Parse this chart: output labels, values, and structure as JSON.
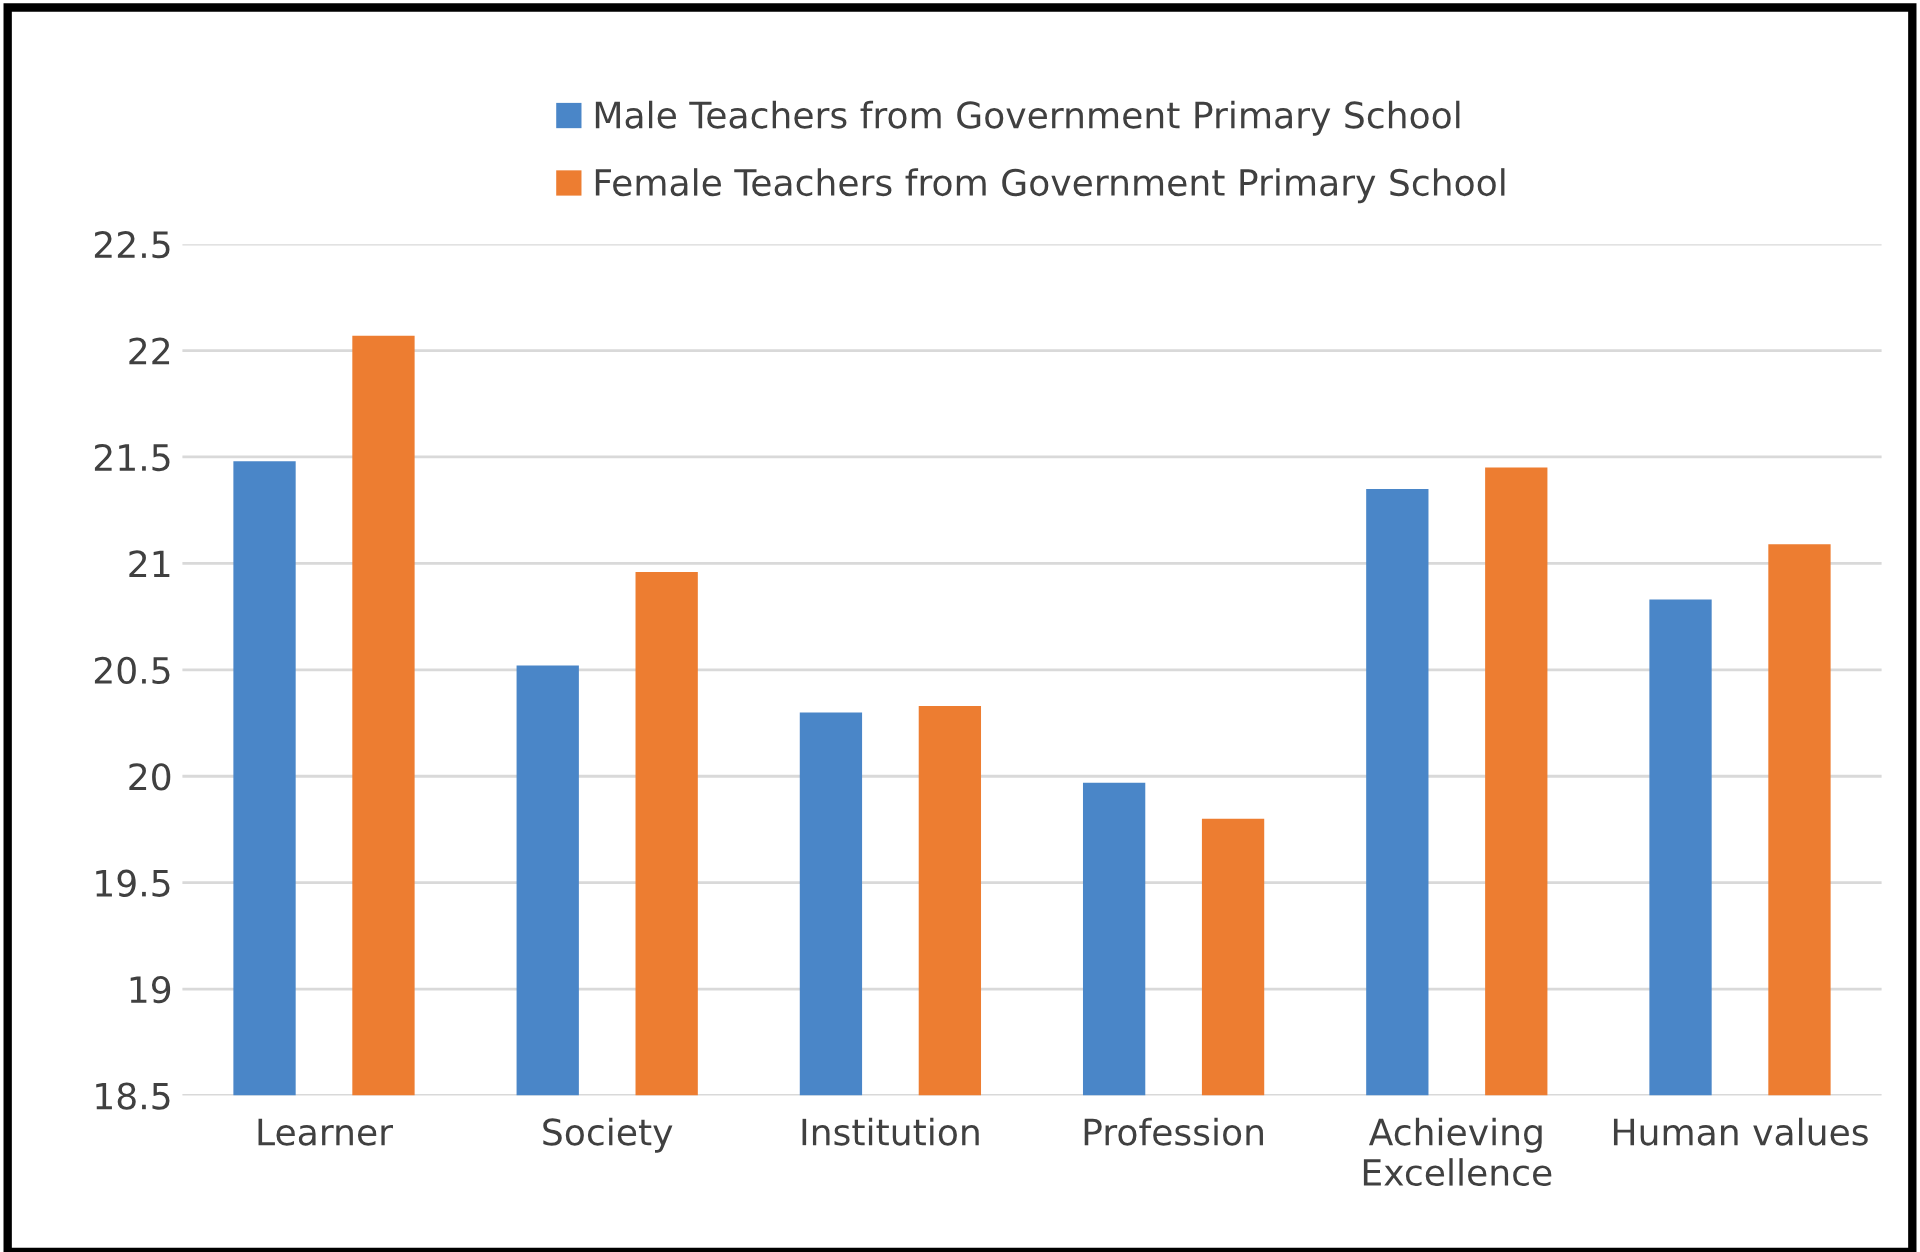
{
  "chart_data": {
    "type": "bar",
    "categories": [
      "Learner",
      "Society",
      "Institution",
      "Profession",
      "Achieving\nExcellence",
      "Human values"
    ],
    "series": [
      {
        "name": "Male Teachers from Government Primary School",
        "color": "#4a86c8",
        "values": [
          21.48,
          20.52,
          20.3,
          19.97,
          21.35,
          20.83
        ]
      },
      {
        "name": "Female Teachers from Government Primary School",
        "color": "#ed7d31",
        "values": [
          22.07,
          20.96,
          20.33,
          19.8,
          21.45,
          21.09
        ]
      }
    ],
    "ylim": [
      18.5,
      22.5
    ],
    "yticks": [
      18.5,
      19,
      19.5,
      20,
      20.5,
      21,
      21.5,
      22,
      22.5
    ],
    "grid": "y",
    "legend": "top"
  }
}
